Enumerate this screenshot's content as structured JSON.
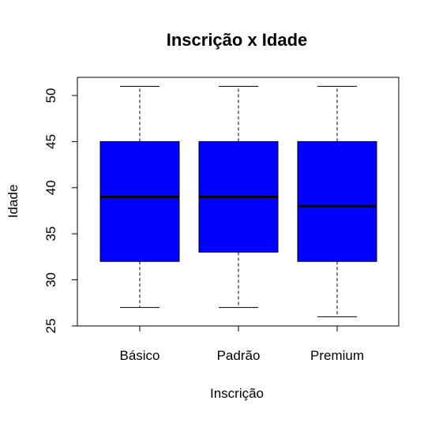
{
  "chart_data": {
    "type": "boxplot",
    "title": "Inscrição x Idade",
    "xlabel": "Inscrição",
    "ylabel": "Idade",
    "ylim": [
      25,
      52
    ],
    "y_ticks": [
      25,
      30,
      35,
      40,
      45,
      50
    ],
    "box_color": "#0000FF",
    "categories": [
      "Básico",
      "Padrão",
      "Premium"
    ],
    "series": [
      {
        "name": "Básico",
        "min": 27,
        "q1": 32,
        "median": 39,
        "q3": 45,
        "max": 51
      },
      {
        "name": "Padrão",
        "min": 27,
        "q1": 33,
        "median": 39,
        "q3": 45,
        "max": 51
      },
      {
        "name": "Premium",
        "min": 26,
        "q1": 32,
        "median": 38,
        "q3": 45,
        "max": 51
      }
    ]
  }
}
